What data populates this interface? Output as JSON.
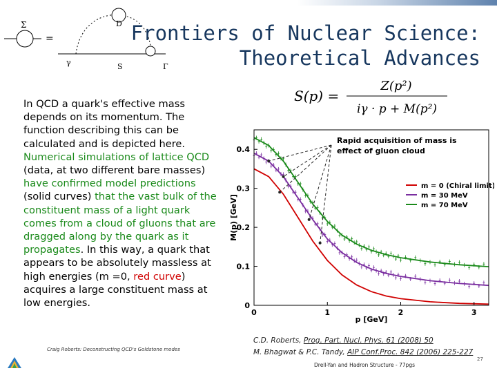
{
  "title": {
    "line1": "Frontiers of Nuclear Science:",
    "line2": "Theoretical Advances"
  },
  "diagram": {
    "labels": {
      "sigma": "Σ",
      "equals": "=",
      "D": "D",
      "gamma": "γ",
      "S": "S",
      "Gamma": "Γ"
    }
  },
  "body_segments": [
    {
      "text": "In QCD a quark's effective mass depends on its momentum. The function describing this can be calculated and is depicted here. ",
      "style": "n"
    },
    {
      "text": "Numerical simulations of lattice QCD",
      "style": "g"
    },
    {
      "text": " (data, at two different bare masses) ",
      "style": "n"
    },
    {
      "text": "have confirmed model predictions",
      "style": "g"
    },
    {
      "text": " (solid curves) ",
      "style": "n"
    },
    {
      "text": "that the vast bulk of the constituent mass of a light quark comes from a cloud of gluons that are dragged along by the quark as it propagates",
      "style": "g"
    },
    {
      "text": ". In this way, a quark that appears to be absolutely massless at high energies (m =0, ",
      "style": "n"
    },
    {
      "text": "red curve",
      "style": "r"
    },
    {
      "text": ") acquires a large constituent mass at low energies.",
      "style": "n"
    }
  ],
  "formula": {
    "lhs": "S(p) =",
    "numerator": "Z(p²)",
    "denominator": "iγ · p + M(p²)"
  },
  "chart_data": {
    "type": "line",
    "xlabel": "p [GeV]",
    "ylabel": "M(p) [GeV]",
    "xlim": [
      0,
      3.2
    ],
    "ylim": [
      0,
      0.45
    ],
    "xticks": [
      "0",
      "1",
      "2",
      "3"
    ],
    "yticks": [
      "0",
      "0.1",
      "0.2",
      "0.3",
      "0.4"
    ],
    "annotation": [
      "Rapid acquisition of mass is",
      "effect of gluon cloud"
    ],
    "legend_position": "right",
    "series": [
      {
        "name": "m = 0 (Chiral limit)",
        "color": "#d00000",
        "x": [
          0,
          0.2,
          0.4,
          0.6,
          0.8,
          1.0,
          1.2,
          1.4,
          1.6,
          1.8,
          2.0,
          2.4,
          2.8,
          3.2
        ],
        "y": [
          0.35,
          0.33,
          0.285,
          0.225,
          0.165,
          0.115,
          0.078,
          0.052,
          0.035,
          0.024,
          0.017,
          0.009,
          0.005,
          0.003
        ]
      },
      {
        "name": "m = 30 MeV",
        "color": "#7a2ea0",
        "x": [
          0,
          0.2,
          0.4,
          0.6,
          0.8,
          1.0,
          1.2,
          1.4,
          1.6,
          1.8,
          2.0,
          2.4,
          2.8,
          3.2
        ],
        "y": [
          0.39,
          0.37,
          0.33,
          0.275,
          0.22,
          0.17,
          0.135,
          0.11,
          0.093,
          0.082,
          0.074,
          0.063,
          0.056,
          0.051
        ]
      },
      {
        "name": "m = 70 MeV",
        "color": "#1a8a1a",
        "x": [
          0,
          0.2,
          0.4,
          0.6,
          0.8,
          1.0,
          1.2,
          1.4,
          1.6,
          1.8,
          2.0,
          2.4,
          2.8,
          3.2
        ],
        "y": [
          0.43,
          0.41,
          0.37,
          0.315,
          0.26,
          0.215,
          0.18,
          0.157,
          0.141,
          0.13,
          0.122,
          0.111,
          0.104,
          0.099
        ]
      }
    ]
  },
  "footer": {
    "left": "Craig Roberts: Deconstructing QCD's Goldstone modes",
    "ref1_author": "C.D. Roberts, ",
    "ref1_link": "Prog. Part. Nucl. Phys. 61 (2008) 50",
    "ref2_author": "M. Bhagwat & P.C. Tandy, ",
    "ref2_link": "AIP Conf.Proc. 842 (2006) 225-227",
    "mid": "Drell-Yan and Hadron Structure - 77pgs",
    "page": "27"
  },
  "colors": {
    "title": "#17375e",
    "green": "#1a8a1a",
    "red": "#d00000",
    "purple": "#7a2ea0"
  }
}
